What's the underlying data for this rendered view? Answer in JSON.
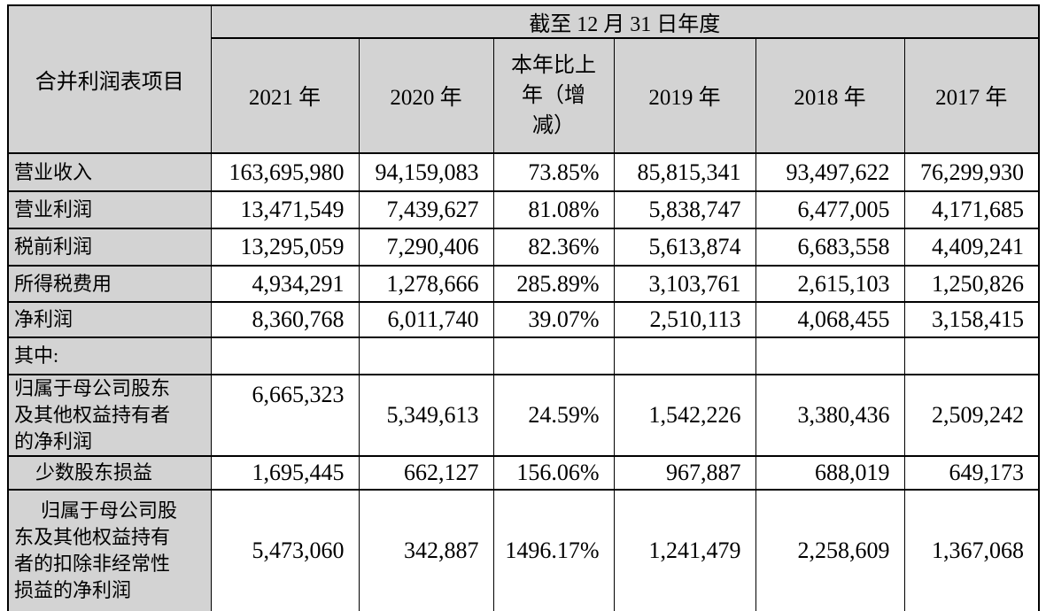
{
  "table": {
    "corner_header": "合并利润表项目",
    "span_header": "截至 12 月 31 日年度",
    "columns": [
      "2021 年",
      "2020 年",
      "本年比上\n年（增\n减）",
      "2019 年",
      "2018 年",
      "2017 年"
    ],
    "rows": [
      {
        "label": "营业收入",
        "values": [
          "163,695,980",
          "94,159,083",
          "73.85%",
          "85,815,341",
          "93,497,622",
          "76,299,930"
        ]
      },
      {
        "label": "营业利润",
        "values": [
          "13,471,549",
          "7,439,627",
          "81.08%",
          "5,838,747",
          "6,477,005",
          "4,171,685"
        ]
      },
      {
        "label": "税前利润",
        "values": [
          "13,295,059",
          "7,290,406",
          "82.36%",
          "5,613,874",
          "6,683,558",
          "4,409,241"
        ]
      },
      {
        "label": "所得税费用",
        "values": [
          "4,934,291",
          "1,278,666",
          "285.89%",
          "3,103,761",
          "2,615,103",
          "1,250,826"
        ]
      },
      {
        "label": "净利润",
        "values": [
          "8,360,768",
          "6,011,740",
          "39.07%",
          "2,510,113",
          "4,068,455",
          "3,158,415"
        ]
      },
      {
        "label": "其中:",
        "values": [
          "",
          "",
          "",
          "",
          "",
          ""
        ]
      },
      {
        "label": "归属于母公司股东\n及其他权益持有者\n的净利润",
        "values": [
          "6,665,323",
          "5,349,613",
          "24.59%",
          "1,542,226",
          "3,380,436",
          "2,509,242"
        ]
      },
      {
        "label": "少数股东损益",
        "values": [
          "1,695,445",
          "662,127",
          "156.06%",
          "967,887",
          "688,019",
          "649,173"
        ]
      },
      {
        "label": "归属于母公司股\n东及其他权益持有\n者的扣除非经常性\n损益的净利润",
        "values": [
          "5,473,060",
          "342,887",
          "1496.17%",
          "1,241,479",
          "2,258,609",
          "1,367,068"
        ]
      }
    ]
  }
}
